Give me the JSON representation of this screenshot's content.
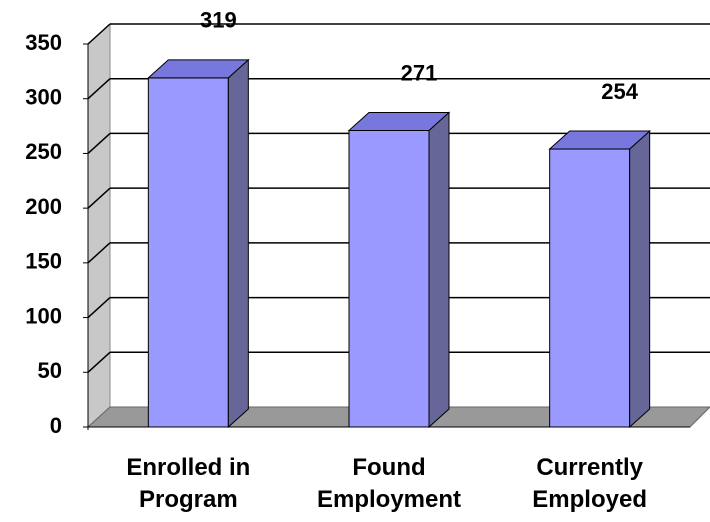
{
  "chart_data": {
    "type": "bar3d",
    "categories": [
      "Enrolled in Program",
      "Found Employment",
      "Currently Employed"
    ],
    "values": [
      319,
      271,
      254
    ],
    "color": "#9999ff",
    "side_color": "#666699",
    "top_color": "#7777dd",
    "ylim": [
      0,
      350
    ],
    "yticks": [
      0,
      50,
      100,
      150,
      200,
      250,
      300,
      350
    ],
    "grid": true
  }
}
